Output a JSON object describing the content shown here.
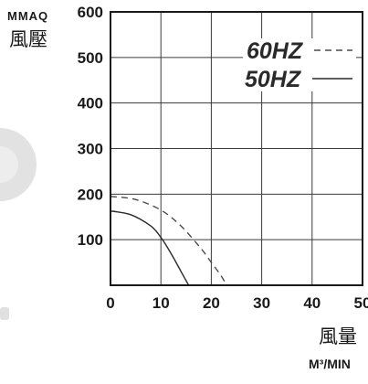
{
  "chart_data": {
    "type": "line",
    "ylabel_unit": "MMAQ",
    "ylabel": "風壓",
    "xlabel": "風量",
    "xlabel_unit": "M³/MIN",
    "xlim": [
      0,
      50
    ],
    "ylim": [
      0,
      600
    ],
    "x_ticks": [
      "0",
      "10",
      "20",
      "30",
      "40",
      "50"
    ],
    "y_ticks": [
      "100",
      "200",
      "300",
      "400",
      "500",
      "600"
    ],
    "grid": true,
    "legend_position": "top-right",
    "series": [
      {
        "name": "60HZ",
        "line_style": "dashed",
        "x": [
          0,
          5,
          10,
          14,
          18,
          20,
          22,
          23
        ],
        "y": [
          195,
          188,
          165,
          130,
          80,
          50,
          20,
          0
        ]
      },
      {
        "name": "50HZ",
        "line_style": "solid",
        "x": [
          0,
          4,
          8,
          10,
          12,
          14,
          15.5
        ],
        "y": [
          163,
          155,
          130,
          105,
          70,
          30,
          0
        ]
      }
    ]
  },
  "colors": {
    "axis": "#1a1a1a",
    "grid": "#3a3a3a",
    "series_60hz": "#4a4a4a",
    "series_50hz": "#2a2a2a",
    "side_decoration": "#dcdcdc"
  },
  "decorations": {
    "left_edge_icon": "partial-circle-icon"
  }
}
